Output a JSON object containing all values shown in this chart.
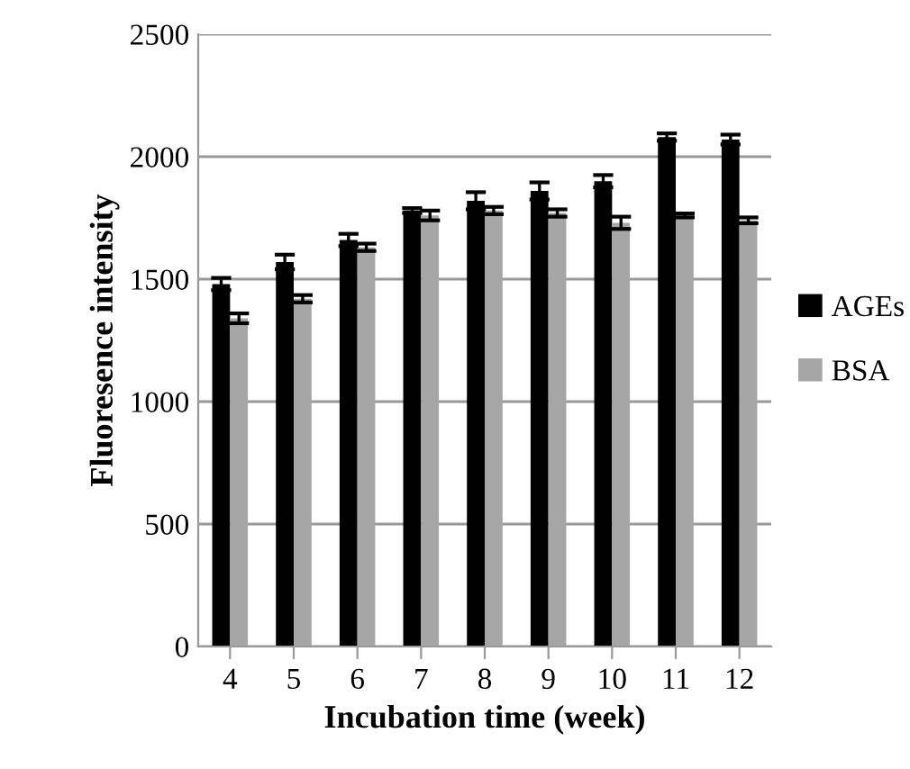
{
  "chart_data": {
    "type": "bar",
    "xlabel": "Incubation time (week)",
    "ylabel": "Fluoresence intensity",
    "categories": [
      "4",
      "5",
      "6",
      "7",
      "8",
      "9",
      "10",
      "11",
      "12"
    ],
    "series": [
      {
        "name": "AGEs",
        "color": "#000000",
        "values": [
          1480,
          1570,
          1660,
          1780,
          1820,
          1860,
          1900,
          2080,
          2070
        ],
        "errors": [
          25,
          30,
          25,
          10,
          35,
          35,
          25,
          15,
          20
        ]
      },
      {
        "name": "BSA",
        "color": "#a6a6a6",
        "values": [
          1340,
          1420,
          1630,
          1760,
          1780,
          1770,
          1730,
          1760,
          1740
        ],
        "errors": [
          20,
          15,
          15,
          20,
          15,
          15,
          25,
          8,
          12
        ]
      }
    ],
    "ylim": [
      0,
      2500
    ],
    "yticks": [
      0,
      500,
      1000,
      1500,
      2000,
      2500
    ],
    "grid": "y",
    "legend": "right"
  }
}
